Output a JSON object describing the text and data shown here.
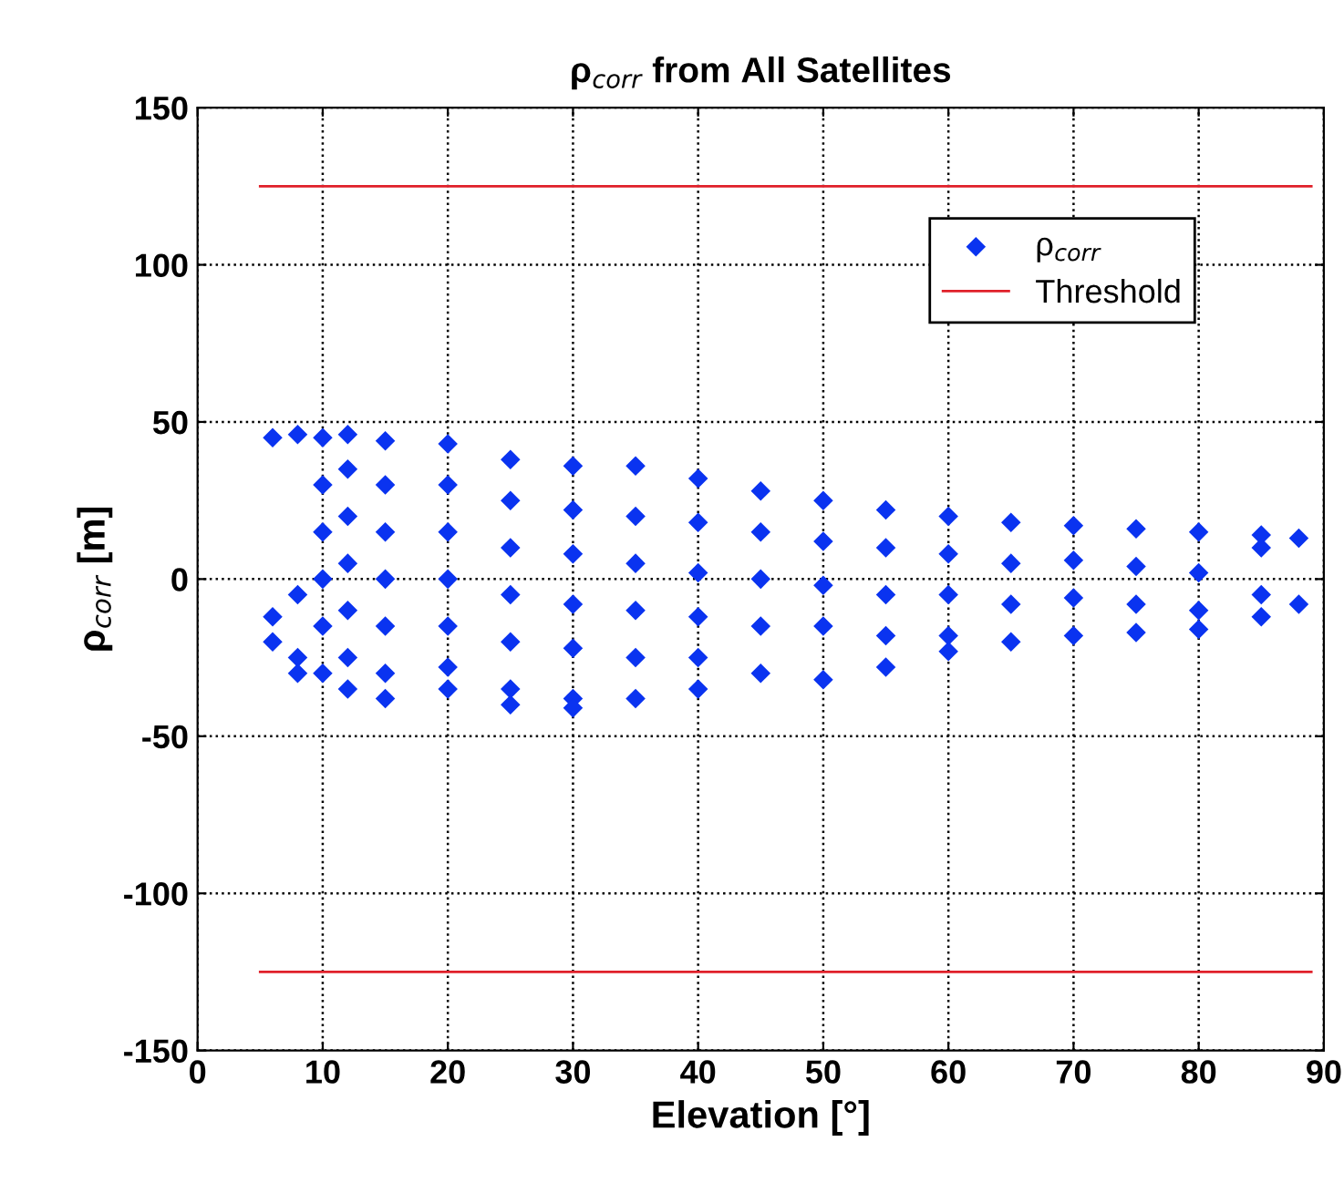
{
  "chart_data": {
    "type": "scatter",
    "title": "ρ$_{corr}$ from All Satellites",
    "xlabel": "Elevation [°]",
    "ylabel": "ρ$_{corr}$ [m]",
    "xlim": [
      0,
      90
    ],
    "xticks": [
      0,
      10,
      20,
      30,
      40,
      50,
      60,
      70,
      80,
      90
    ],
    "ylim": [
      -150,
      150
    ],
    "yticks": [
      -150,
      -100,
      -50,
      0,
      50,
      100,
      150
    ],
    "grid": true,
    "legend": "top right",
    "series": [
      {
        "name": "ρ$_{corr}$",
        "marker": "diamond",
        "color": "#0a33f0",
        "x": [
          6,
          6,
          6,
          8,
          8,
          8,
          8,
          10,
          10,
          10,
          10,
          10,
          10,
          12,
          12,
          12,
          12,
          12,
          12,
          12,
          15,
          15,
          15,
          15,
          15,
          15,
          15,
          20,
          20,
          20,
          20,
          20,
          20,
          20,
          25,
          25,
          25,
          25,
          25,
          25,
          25,
          30,
          30,
          30,
          30,
          30,
          30,
          30,
          35,
          35,
          35,
          35,
          35,
          35,
          40,
          40,
          40,
          40,
          40,
          40,
          45,
          45,
          45,
          45,
          45,
          50,
          50,
          50,
          50,
          50,
          55,
          55,
          55,
          55,
          55,
          60,
          60,
          60,
          60,
          60,
          65,
          65,
          65,
          65,
          70,
          70,
          70,
          70,
          75,
          75,
          75,
          75,
          80,
          80,
          80,
          80,
          85,
          85,
          85,
          85,
          88,
          88
        ],
        "values": [
          45,
          -12,
          -20,
          46,
          -25,
          -30,
          -5,
          45,
          30,
          15,
          0,
          -15,
          -30,
          46,
          35,
          20,
          5,
          -10,
          -25,
          -35,
          44,
          30,
          15,
          0,
          -15,
          -30,
          -38,
          43,
          30,
          15,
          0,
          -15,
          -28,
          -35,
          38,
          25,
          10,
          -5,
          -20,
          -35,
          -40,
          36,
          22,
          8,
          -8,
          -22,
          -38,
          -41,
          36,
          20,
          5,
          -10,
          -25,
          -38,
          32,
          18,
          2,
          -12,
          -25,
          -35,
          28,
          15,
          0,
          -15,
          -30,
          25,
          12,
          -2,
          -15,
          -32,
          22,
          10,
          -5,
          -18,
          -28,
          20,
          8,
          -5,
          -18,
          -23,
          18,
          5,
          -8,
          -20,
          17,
          6,
          -6,
          -18,
          16,
          4,
          -8,
          -17,
          15,
          2,
          -10,
          -16,
          14,
          10,
          -5,
          -12,
          13,
          -8
        ]
      },
      {
        "name": "Threshold",
        "type": "line",
        "line_style": "solid",
        "color": "#e0202a",
        "x": [
          5,
          89
        ],
        "values": [
          125,
          125
        ]
      },
      {
        "type": "line",
        "line_style": "solid",
        "color": "#e0202a",
        "x": [
          5,
          89
        ],
        "values": [
          -125,
          -125
        ]
      }
    ]
  }
}
